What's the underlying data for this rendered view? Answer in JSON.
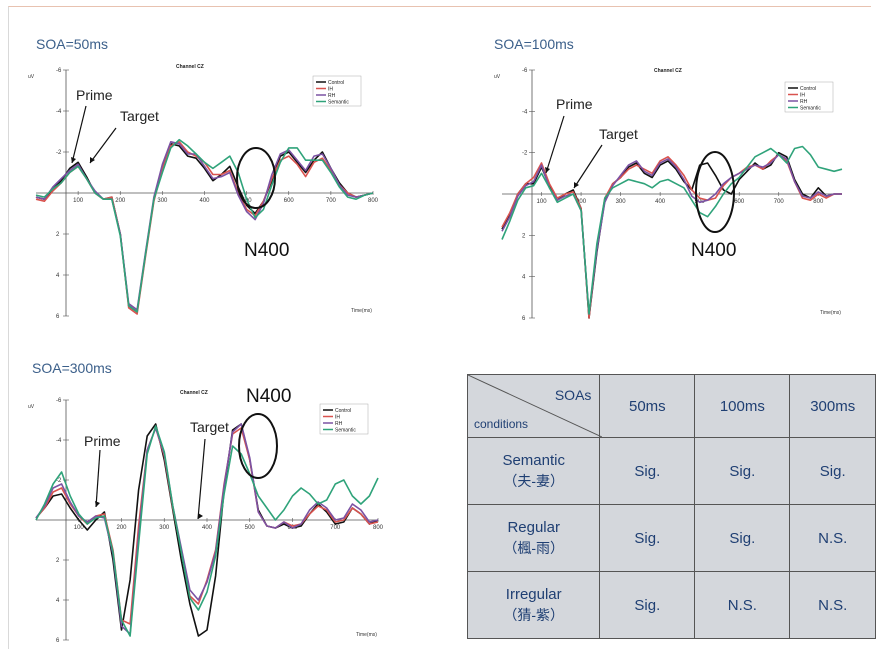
{
  "colors": {
    "control": "#111111",
    "ih": "#d9534f",
    "rh": "#7b52a3",
    "semantic": "#2fa37a",
    "title": "#3b5f8a",
    "table_text": "#1f3f73",
    "table_bg": "#d4d7dc"
  },
  "chart_data": [
    {
      "type": "line",
      "soa_title": "SOA=50ms",
      "title": "Channel CZ",
      "ylabel": "uV",
      "xlabel": "Time(ms)",
      "ylim": [
        -6,
        6
      ],
      "y_inverted": true,
      "x_ticks": [
        "100",
        "200",
        "300",
        "400",
        "500",
        "600",
        "700",
        "800"
      ],
      "y_ticks": [
        "-6",
        "-4",
        "-2",
        "2",
        "4",
        "6"
      ],
      "legend": [
        "Control",
        "IH",
        "RH",
        "Semantic"
      ],
      "annotations": {
        "prime": "Prime",
        "target": "Target",
        "n400": "N400"
      },
      "x": [
        0,
        20,
        40,
        60,
        80,
        100,
        120,
        140,
        160,
        180,
        200,
        220,
        240,
        260,
        280,
        300,
        320,
        340,
        360,
        380,
        400,
        420,
        440,
        460,
        480,
        500,
        520,
        540,
        560,
        580,
        600,
        620,
        640,
        660,
        680,
        700,
        720,
        740,
        760,
        780,
        800
      ],
      "series": [
        {
          "name": "Control",
          "values": [
            0.2,
            0.3,
            -0.2,
            -0.6,
            -1.2,
            -1.5,
            -0.8,
            0,
            0.3,
            0.2,
            2,
            5.5,
            5.8,
            3,
            0.3,
            -1.3,
            -2.4,
            -2.3,
            -1.8,
            -1.7,
            -1.2,
            -0.6,
            -0.9,
            -1.3,
            -0.3,
            0.6,
            1,
            0.4,
            -0.6,
            -1.8,
            -2,
            -1.5,
            -1,
            -1.6,
            -2,
            -1.2,
            -0.5,
            0,
            0.2,
            0.1,
            0
          ]
        },
        {
          "name": "IH",
          "values": [
            0.3,
            0.4,
            -0.1,
            -0.5,
            -1,
            -1.3,
            -0.7,
            0,
            0.3,
            0.2,
            2,
            5.6,
            5.9,
            3.1,
            0.4,
            -1.2,
            -2.3,
            -2.5,
            -2,
            -1.8,
            -1.5,
            -0.9,
            -0.9,
            -1.1,
            0,
            0.8,
            1.1,
            0.4,
            -0.7,
            -1.6,
            -1.8,
            -1.4,
            -0.8,
            -1.5,
            -1.7,
            -1.1,
            -0.4,
            0,
            0.2,
            0.1,
            0
          ]
        },
        {
          "name": "RH",
          "values": [
            0.2,
            0.3,
            -0.3,
            -0.7,
            -1.1,
            -1.4,
            -0.7,
            -0.1,
            0.3,
            0.3,
            2,
            5.4,
            5.7,
            2.9,
            0.2,
            -1.4,
            -2.5,
            -2.4,
            -1.9,
            -1.9,
            -1.3,
            -0.7,
            -0.8,
            -1,
            0.1,
            0.9,
            1.3,
            0.5,
            -0.9,
            -1.9,
            -2.1,
            -1.6,
            -1.1,
            -1.8,
            -1.9,
            -1.2,
            -0.4,
            0.1,
            0.2,
            0.1,
            0
          ]
        },
        {
          "name": "Semantic",
          "values": [
            0.1,
            0.2,
            -0.2,
            -0.5,
            -1,
            -1.3,
            -0.7,
            0,
            0.3,
            0.3,
            2.1,
            5.5,
            5.8,
            3,
            0.3,
            -1,
            -2.2,
            -2.6,
            -2.3,
            -1.9,
            -1.5,
            -1.2,
            -1.5,
            -1.8,
            -1,
            0.3,
            1.2,
            0.8,
            -0.4,
            -1.5,
            -2.2,
            -2.2,
            -1.6,
            -1.6,
            -1.6,
            -1,
            -0.3,
            0.2,
            0.3,
            0.1,
            0
          ]
        }
      ]
    },
    {
      "type": "line",
      "soa_title": "SOA=100ms",
      "title": "Channel CZ",
      "ylabel": "uV",
      "xlabel": "Time(ms)",
      "ylim": [
        -6,
        6
      ],
      "y_inverted": true,
      "x_ticks": [
        "100",
        "200",
        "300",
        "400",
        "500",
        "600",
        "700",
        "800"
      ],
      "y_ticks": [
        "-6",
        "-4",
        "-2",
        "2",
        "4",
        "6"
      ],
      "legend": [
        "Control",
        "IH",
        "RH",
        "Semantic"
      ],
      "annotations": {
        "prime": "Prime",
        "target": "Target",
        "n400": "N400"
      },
      "x": [
        0,
        20,
        40,
        60,
        80,
        100,
        120,
        140,
        160,
        180,
        200,
        220,
        240,
        260,
        280,
        300,
        320,
        340,
        360,
        380,
        400,
        420,
        440,
        460,
        480,
        500,
        520,
        540,
        560,
        580,
        600,
        620,
        640,
        660,
        680,
        700,
        720,
        740,
        760,
        780,
        800,
        820,
        840,
        860
      ],
      "series": [
        {
          "name": "Control",
          "values": [
            1.7,
            1,
            0,
            -0.5,
            -0.5,
            -1.3,
            -0.4,
            0.3,
            0,
            -0.2,
            0.7,
            6,
            2.8,
            0.3,
            -0.5,
            -0.8,
            -1.3,
            -1.5,
            -1,
            -0.8,
            -1.4,
            -1.6,
            -1.2,
            -0.6,
            -0.2,
            -1.4,
            -1.5,
            -0.9,
            -0.2,
            0,
            -0.7,
            -1.1,
            -1.5,
            -1.2,
            -1.4,
            -2,
            -1.8,
            -0.7,
            0,
            0.2,
            -0.3,
            0.1,
            0,
            0
          ]
        },
        {
          "name": "IH",
          "values": [
            1.6,
            0.9,
            0,
            -0.5,
            -0.8,
            -1.5,
            -0.5,
            0.2,
            0,
            -0.1,
            0.7,
            6,
            2.6,
            0.2,
            -0.5,
            -0.8,
            -1.2,
            -1.4,
            -1.2,
            -1,
            -1.6,
            -1.8,
            -1.4,
            -0.9,
            -0.2,
            0.2,
            0.3,
            0.2,
            -0.4,
            -0.8,
            -1,
            -1.3,
            -1.4,
            -1.2,
            -1.6,
            -1.9,
            -1.6,
            -0.6,
            0.2,
            0.3,
            0,
            0.2,
            0,
            0
          ]
        },
        {
          "name": "RH",
          "values": [
            1.8,
            1.1,
            0.1,
            -0.4,
            -0.6,
            -1.4,
            -0.3,
            0.3,
            0.1,
            0,
            0.8,
            5.8,
            2.7,
            0.4,
            -0.4,
            -0.9,
            -1.4,
            -1.6,
            -1.1,
            -0.9,
            -1.5,
            -1.7,
            -1.3,
            -0.7,
            0.1,
            0.4,
            0.3,
            0,
            -0.5,
            -0.8,
            -1,
            -1.2,
            -1.4,
            -1.3,
            -1.5,
            -1.9,
            -1.7,
            -0.6,
            0.1,
            0.2,
            -0.1,
            0.1,
            0,
            0
          ]
        },
        {
          "name": "Semantic",
          "values": [
            2.2,
            1.3,
            0.3,
            -0.3,
            -0.4,
            -1,
            -0.3,
            0.4,
            0.2,
            0,
            0.8,
            5.8,
            2.4,
            0.2,
            -0.3,
            -0.5,
            -0.7,
            -0.6,
            -0.5,
            -0.3,
            -0.6,
            -0.7,
            -0.5,
            -0.3,
            0.3,
            0.9,
            1.1,
            0.6,
            0,
            -0.5,
            -0.8,
            -1.3,
            -1.8,
            -2,
            -2.2,
            -1.9,
            -1.5,
            -2.2,
            -2.3,
            -1.9,
            -1.3,
            -1.2,
            -1.1,
            -1.2
          ]
        }
      ]
    },
    {
      "type": "line",
      "soa_title": "SOA=300ms",
      "title": "Channel CZ",
      "ylabel": "uV",
      "xlabel": "Time(ms)",
      "ylim": [
        -6,
        6
      ],
      "y_inverted": true,
      "x_ticks": [
        "100",
        "200",
        "300",
        "400",
        "500",
        "600",
        "700",
        "800"
      ],
      "y_ticks": [
        "-6",
        "-4",
        "-2",
        "2",
        "4",
        "6"
      ],
      "legend": [
        "Control",
        "IH",
        "RH",
        "Semantic"
      ],
      "annotations": {
        "prime": "Prime",
        "target": "Target",
        "n400": "N400"
      },
      "x": [
        0,
        20,
        40,
        60,
        80,
        100,
        120,
        140,
        160,
        180,
        200,
        220,
        240,
        260,
        280,
        300,
        320,
        340,
        360,
        380,
        400,
        420,
        440,
        460,
        480,
        500,
        520,
        540,
        560,
        580,
        600,
        620,
        640,
        660,
        680,
        700,
        720,
        740,
        760,
        780,
        800
      ],
      "series": [
        {
          "name": "Control",
          "values": [
            -0.1,
            -0.6,
            -1.2,
            -1.3,
            -0.6,
            0,
            0.5,
            0,
            -0.4,
            2,
            5.5,
            3,
            -1.5,
            -4.2,
            -4.8,
            -3,
            -0.5,
            2,
            4.2,
            5.8,
            5.5,
            2.8,
            -1.5,
            -4.5,
            -4.8,
            -3,
            -0.5,
            0.3,
            0.4,
            0.2,
            0.4,
            0.3,
            -0.3,
            -0.8,
            -0.4,
            0.2,
            0.1,
            -0.6,
            -0.3,
            0.2,
            0
          ]
        },
        {
          "name": "IH",
          "values": [
            -0.1,
            -0.6,
            -1.4,
            -1.6,
            -0.8,
            -0.2,
            0.2,
            -0.2,
            -0.3,
            1.5,
            5,
            5.2,
            0.3,
            -3.5,
            -4.6,
            -3.2,
            -0.6,
            1.5,
            3.8,
            4.2,
            3,
            1.5,
            -1.8,
            -4.3,
            -4.6,
            -3,
            -0.4,
            0.3,
            0.4,
            0.1,
            0.3,
            0.2,
            -0.3,
            -0.7,
            -0.5,
            0.1,
            0,
            -0.6,
            -0.3,
            0.2,
            0.1
          ]
        },
        {
          "name": "RH",
          "values": [
            -0.1,
            -0.7,
            -1.6,
            -1.8,
            -0.9,
            -0.2,
            0.1,
            -0.2,
            -0.1,
            1.7,
            5.3,
            5.7,
            0.8,
            -3.5,
            -4.6,
            -3.3,
            -0.7,
            1.4,
            3.5,
            4,
            3.1,
            1.6,
            -1.7,
            -4.4,
            -4.8,
            -3.1,
            -0.4,
            0.3,
            0.4,
            0.1,
            0.4,
            0.2,
            -0.5,
            -0.9,
            -0.6,
            0,
            -0.1,
            -0.8,
            -0.5,
            0.1,
            0
          ]
        },
        {
          "name": "Semantic",
          "values": [
            0,
            -0.8,
            -1.8,
            -2.4,
            -1.2,
            -0.3,
            0.2,
            -0.1,
            -0.2,
            1.6,
            5,
            5.8,
            1.2,
            -3.3,
            -4.7,
            -3.4,
            -0.7,
            1.6,
            3.9,
            4.5,
            3.6,
            1.8,
            -1.3,
            -3.7,
            -3.3,
            -2.3,
            -1.2,
            -0.6,
            0,
            -0.5,
            -1.2,
            -1.6,
            -1.3,
            -0.8,
            -1,
            -1.8,
            -2,
            -1.2,
            -0.8,
            -1.2,
            -2.1
          ]
        }
      ]
    }
  ],
  "table": {
    "header_soas": "SOAs",
    "header_conditions": "conditions",
    "columns": [
      "50ms",
      "100ms",
      "300ms"
    ],
    "rows": [
      {
        "name": "Semantic",
        "chars": "（夫-妻）",
        "values": [
          "Sig.",
          "Sig.",
          "Sig."
        ]
      },
      {
        "name": "Regular",
        "chars": "（楓-雨）",
        "values": [
          "Sig.",
          "Sig.",
          "N.S."
        ]
      },
      {
        "name": "Irregular",
        "chars": "（猜-紫）",
        "values": [
          "Sig.",
          "N.S.",
          "N.S."
        ]
      }
    ]
  }
}
